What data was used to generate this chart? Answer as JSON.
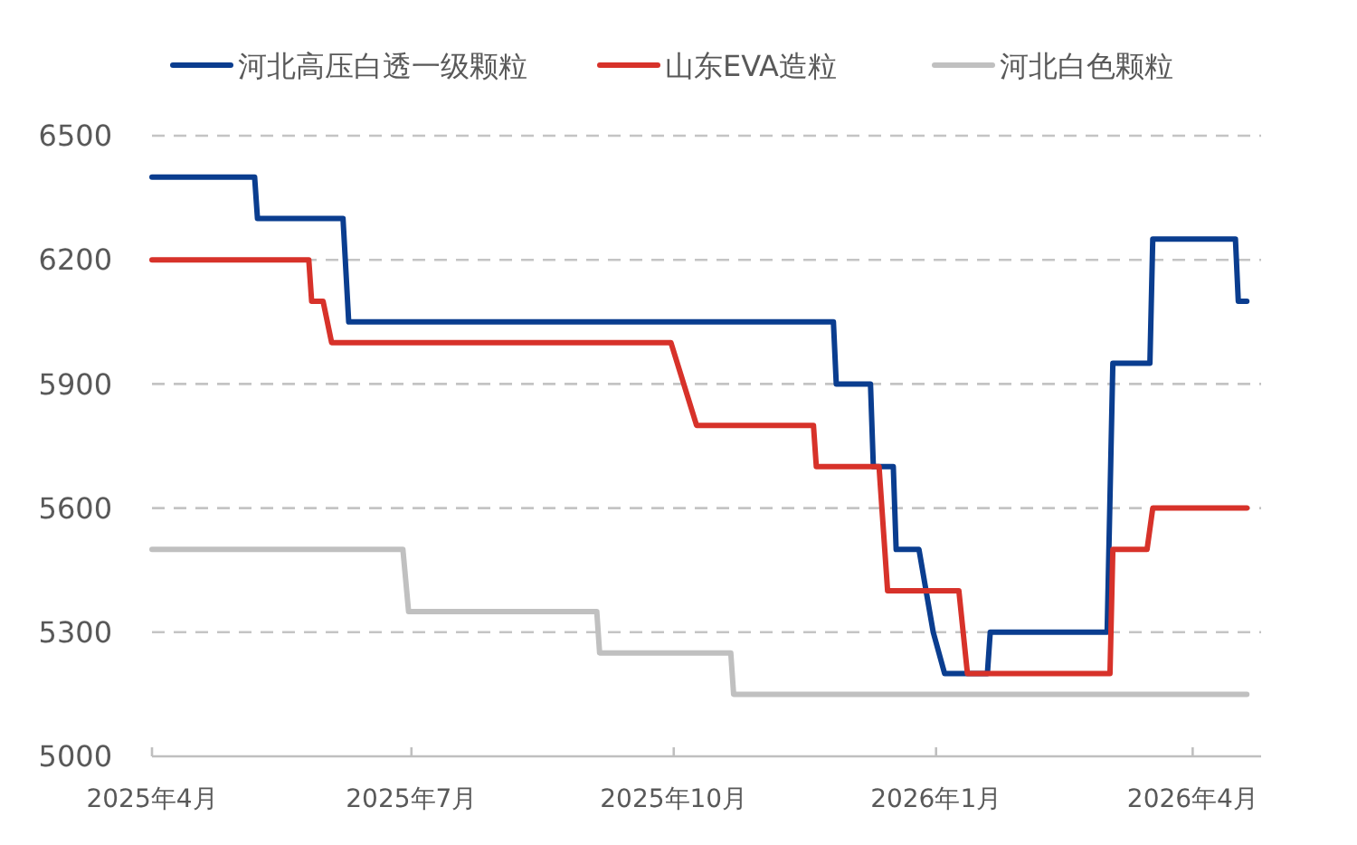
{
  "chart_data": {
    "type": "line",
    "ylim": [
      5000,
      6500
    ],
    "yticks": [
      5000,
      5300,
      5600,
      5900,
      6200,
      6500
    ],
    "xlim": [
      "2025-04-01",
      "2026-04-25"
    ],
    "xticks": [
      {
        "value": "2025-04",
        "label": "2025年4月"
      },
      {
        "value": "2025-07",
        "label": "2025年7月"
      },
      {
        "value": "2025-10",
        "label": "2025年10月"
      },
      {
        "value": "2026-01",
        "label": "2026年1月"
      },
      {
        "value": "2026-04",
        "label": "2026年4月"
      }
    ],
    "grid": "y",
    "legend": "top",
    "marker": "none",
    "line_style": "solid",
    "series": [
      {
        "name": "河北高压白透一级颗粒",
        "color": "#0a3d8f",
        "x": [
          "2025-04-01",
          "2025-05-07",
          "2025-05-08",
          "2025-06-07",
          "2025-06-09",
          "2025-11-26",
          "2025-11-27",
          "2025-12-09",
          "2025-12-10",
          "2025-12-17",
          "2025-12-18",
          "2025-12-26",
          "2025-12-31",
          "2026-01-04",
          "2026-01-19",
          "2026-01-20",
          "2026-03-02",
          "2026-03-04",
          "2026-03-17",
          "2026-03-18",
          "2026-04-16",
          "2026-04-17",
          "2026-04-20"
        ],
        "values": [
          6400,
          6400,
          6300,
          6300,
          6050,
          6050,
          5900,
          5900,
          5700,
          5700,
          5500,
          5500,
          5300,
          5200,
          5200,
          5300,
          5300,
          5950,
          5950,
          6250,
          6250,
          6100,
          6100
        ]
      },
      {
        "name": "山东EVA造粒",
        "color": "#d7322a",
        "x": [
          "2025-04-01",
          "2025-05-26",
          "2025-05-27",
          "2025-05-31",
          "2025-06-03",
          "2025-09-30",
          "2025-10-09",
          "2025-11-19",
          "2025-11-20",
          "2025-12-12",
          "2025-12-15",
          "2026-01-09",
          "2026-01-12",
          "2026-03-03",
          "2026-03-04",
          "2026-03-16",
          "2026-03-18",
          "2026-04-20"
        ],
        "values": [
          6200,
          6200,
          6100,
          6100,
          6000,
          6000,
          5800,
          5800,
          5700,
          5700,
          5400,
          5400,
          5200,
          5200,
          5500,
          5500,
          5600,
          5600
        ]
      },
      {
        "name": "河北白色颗粒",
        "color": "#c0c0c0",
        "x": [
          "2025-04-01",
          "2025-06-28",
          "2025-06-30",
          "2025-09-04",
          "2025-09-05",
          "2025-10-21",
          "2025-10-22",
          "2026-04-20"
        ],
        "values": [
          5500,
          5500,
          5350,
          5350,
          5250,
          5250,
          5150,
          5150
        ]
      }
    ]
  }
}
